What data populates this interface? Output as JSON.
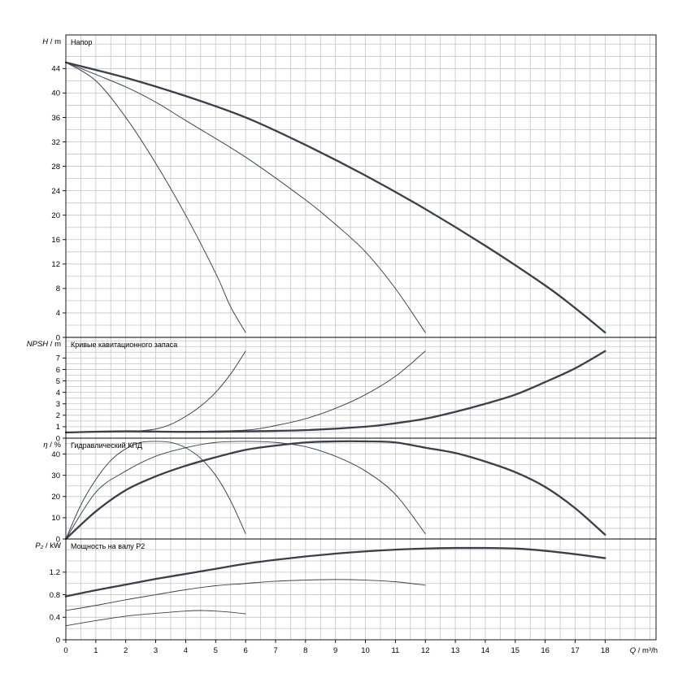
{
  "chart_data": {
    "type": "line",
    "x_axis": {
      "label_var": "Q",
      "label_unit": "m³/h",
      "range": [
        0,
        19.7
      ],
      "ticks": [
        0,
        1,
        2,
        3,
        4,
        5,
        6,
        7,
        8,
        9,
        10,
        11,
        12,
        13,
        14,
        15,
        16,
        17,
        18
      ]
    },
    "panels": [
      {
        "key": "head",
        "title": "Напор",
        "ylabel_var": "H",
        "ylabel_unit": "m",
        "ylim": [
          0,
          49.5
        ],
        "y_ticks": [
          0,
          4,
          8,
          12,
          16,
          20,
          24,
          28,
          32,
          36,
          40,
          44
        ],
        "series": [
          {
            "weight": "thin",
            "x": [
              0,
              1,
              2,
              3,
              4,
              5,
              5.5,
              6
            ],
            "y": [
              45,
              42,
              36,
              28.5,
              20,
              10.5,
              5,
              0.8
            ]
          },
          {
            "weight": "thin",
            "x": [
              0,
              2,
              3,
              4,
              6,
              8,
              9,
              10,
              11,
              12
            ],
            "y": [
              45,
              41,
              38.5,
              35.5,
              29.5,
              22.5,
              18.5,
              14,
              8,
              0.8
            ]
          },
          {
            "weight": "thick",
            "x": [
              0,
              2,
              4,
              6,
              8,
              10,
              12,
              14,
              16,
              17,
              18
            ],
            "y": [
              45,
              42.5,
              39.5,
              36,
              31.5,
              26.5,
              21,
              15,
              8.5,
              4.8,
              0.8
            ]
          }
        ]
      },
      {
        "key": "npsh",
        "title": "Кривые кавитационного запаса",
        "ylabel_var": "NPSH",
        "ylabel_unit": "m",
        "ylim": [
          0,
          8.8
        ],
        "y_ticks": [
          0,
          1,
          2,
          3,
          4,
          5,
          6,
          7
        ],
        "series": [
          {
            "weight": "thin",
            "x": [
              0,
              1,
              2,
              2.5,
              3,
              3.5,
              4,
              4.5,
              5,
              5.5,
              6
            ],
            "y": [
              0.5,
              0.6,
              0.6,
              0.65,
              0.8,
              1.2,
              1.9,
              2.8,
              4,
              5.6,
              7.6
            ]
          },
          {
            "weight": "thin",
            "x": [
              0,
              2,
              4,
              6,
              7,
              8,
              9,
              10,
              11,
              12
            ],
            "y": [
              0.5,
              0.6,
              0.6,
              0.7,
              1.1,
              1.7,
              2.6,
              3.8,
              5.4,
              7.6
            ]
          },
          {
            "weight": "thick",
            "x": [
              0,
              2,
              4,
              6,
              8,
              10,
              11,
              12,
              13,
              14,
              15,
              16,
              17,
              18
            ],
            "y": [
              0.5,
              0.6,
              0.55,
              0.6,
              0.7,
              1,
              1.3,
              1.7,
              2.3,
              3,
              3.8,
              4.9,
              6.1,
              7.6
            ]
          }
        ]
      },
      {
        "key": "eff",
        "title": "Гидравлический КПД",
        "ylabel_var": "η",
        "ylabel_unit": "%",
        "ylim": [
          0,
          47.5
        ],
        "y_ticks": [
          0,
          10,
          20,
          30,
          40
        ],
        "series": [
          {
            "weight": "thin",
            "x": [
              0,
              0.5,
              1,
              1.5,
              2,
              2.5,
              3,
              3.5,
              4,
              4.5,
              5,
              5.5,
              6
            ],
            "y": [
              0,
              16,
              28,
              37,
              42.5,
              45.5,
              46,
              45.5,
              43,
              38,
              30,
              18,
              2.5
            ]
          },
          {
            "weight": "thin",
            "x": [
              0,
              1,
              2,
              3,
              4,
              5,
              6,
              7,
              8,
              9,
              10,
              11,
              12
            ],
            "y": [
              0,
              22,
              32,
              39,
              43,
              45.5,
              46,
              45.5,
              43.5,
              39,
              32,
              21,
              2.5
            ]
          },
          {
            "weight": "thick",
            "x": [
              0,
              1,
              2,
              3,
              4,
              5,
              6,
              7,
              8,
              9,
              10,
              11,
              12,
              13,
              14,
              15,
              16,
              17,
              18
            ],
            "y": [
              0,
              13,
              23,
              29.5,
              34.5,
              38.5,
              42,
              44,
              45.5,
              46,
              46,
              45.5,
              43,
              40.5,
              36.5,
              31.5,
              24.5,
              14.5,
              2
            ]
          }
        ]
      },
      {
        "key": "power",
        "title": "Мощность на валу P2",
        "ylabel_var": "P₂",
        "ylabel_unit": "kW",
        "ylim": [
          0,
          1.79
        ],
        "y_ticks": [
          0,
          0.4,
          0.8,
          1.2
        ],
        "y_tick_labels": [
          "0",
          "0.4",
          "0.8",
          "1.2"
        ],
        "series": [
          {
            "weight": "thin",
            "x": [
              0,
              1,
              2,
              3,
              4,
              4.5,
              5,
              5.5,
              6
            ],
            "y": [
              0.25,
              0.34,
              0.42,
              0.47,
              0.51,
              0.52,
              0.51,
              0.49,
              0.46
            ]
          },
          {
            "weight": "thin",
            "x": [
              0,
              1,
              2,
              3,
              4,
              5,
              6,
              7,
              8,
              9,
              10,
              11,
              12
            ],
            "y": [
              0.52,
              0.61,
              0.71,
              0.8,
              0.89,
              0.96,
              1,
              1.04,
              1.06,
              1.07,
              1.06,
              1.03,
              0.97
            ]
          },
          {
            "weight": "thick",
            "x": [
              0,
              1,
              2,
              3,
              4,
              5,
              6,
              7,
              8,
              9,
              10,
              11,
              12,
              13,
              14,
              15,
              16,
              17,
              18
            ],
            "y": [
              0.77,
              0.88,
              0.98,
              1.08,
              1.17,
              1.26,
              1.35,
              1.42,
              1.48,
              1.53,
              1.57,
              1.6,
              1.62,
              1.63,
              1.63,
              1.62,
              1.58,
              1.52,
              1.45
            ]
          }
        ]
      }
    ],
    "grid": true,
    "colors": {
      "curve": "#3a3f4c",
      "grid": "#c4c4c4",
      "frame": "#000000"
    }
  }
}
